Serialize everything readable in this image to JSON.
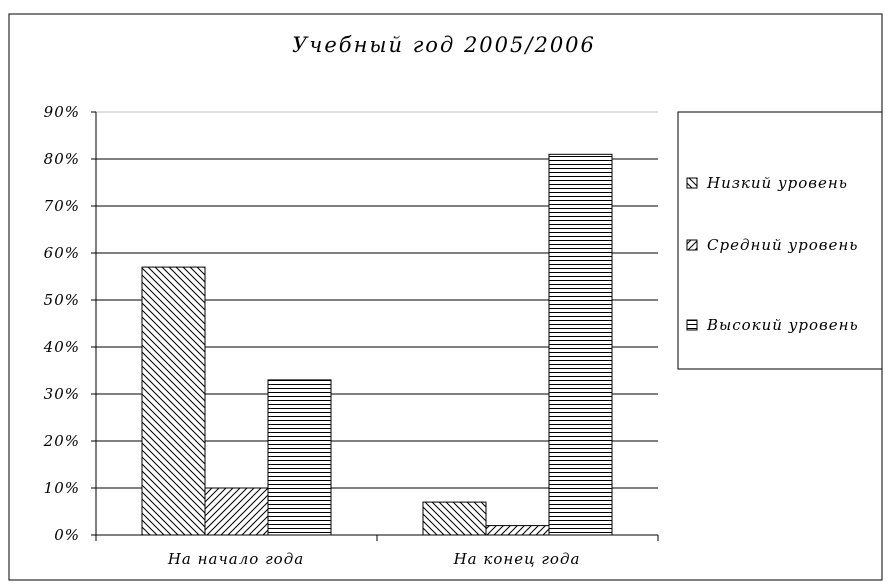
{
  "chart_data": {
    "type": "bar",
    "title": "Учебный год 2005/2006",
    "xlabel": "",
    "ylabel": "",
    "categories": [
      "На начало года",
      "На конец года"
    ],
    "series": [
      {
        "name": "Низкий уровень",
        "values": [
          57,
          7
        ],
        "pattern": "diag-down"
      },
      {
        "name": "Средний уровень",
        "values": [
          10,
          2
        ],
        "pattern": "diag-up"
      },
      {
        "name": "Высокий уровень",
        "values": [
          33,
          81
        ],
        "pattern": "horizontal"
      }
    ],
    "ylim": [
      0,
      90
    ],
    "yticks": [
      "0%",
      "10%",
      "20%",
      "30%",
      "40%",
      "50%",
      "60%",
      "70%",
      "80%",
      "90%"
    ],
    "grid": true,
    "legend_position": "right"
  }
}
